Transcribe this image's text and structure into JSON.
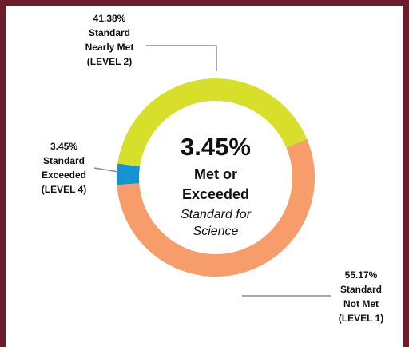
{
  "chart_data": {
    "type": "donut",
    "categories": [
      [
        "Standard",
        "Nearly Met",
        "(LEVEL 2)"
      ],
      [
        "Standard",
        "Exceeded",
        "(LEVEL 4)"
      ],
      [
        "Standard",
        "Not Met",
        "(LEVEL 1)"
      ]
    ],
    "values": [
      41.38,
      3.45,
      55.17
    ],
    "value_labels": [
      "41.38%",
      "3.45%",
      "55.17%"
    ],
    "colors": [
      "#d7df2b",
      "#1592cf",
      "#f79d6b"
    ],
    "center_value": "3.45%",
    "center_title": [
      "Met or",
      "Exceeded"
    ],
    "center_subtitle": [
      "Standard for",
      "Science"
    ]
  }
}
